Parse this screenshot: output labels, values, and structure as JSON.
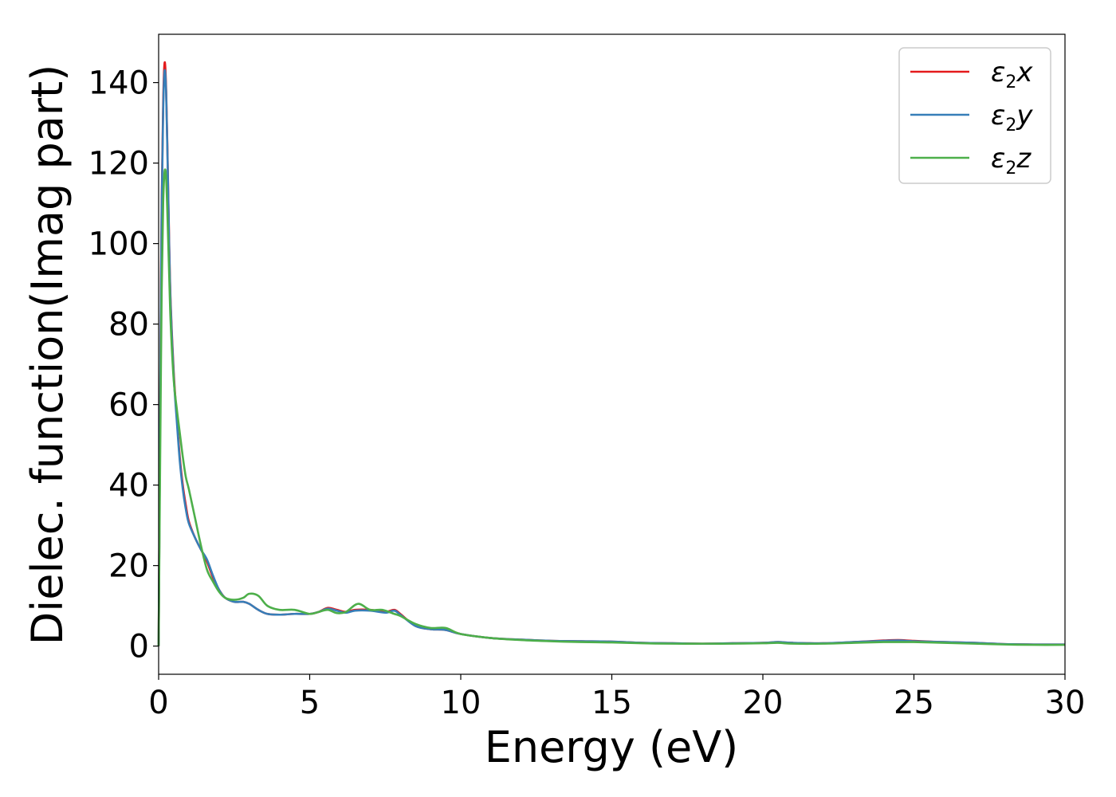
{
  "chart_data": {
    "type": "line",
    "title": "",
    "xlabel": "Energy (eV)",
    "ylabel": "Dielec. function(Imag part)",
    "xlim": [
      0,
      30
    ],
    "ylim": [
      -7,
      152
    ],
    "xticks": [
      0,
      5,
      10,
      15,
      20,
      25,
      30
    ],
    "yticks": [
      0,
      20,
      40,
      60,
      80,
      100,
      120,
      140
    ],
    "grid": false,
    "legend_position": "top-right",
    "series": [
      {
        "name": "ε₂x",
        "legend": {
          "base": "ε",
          "sub": "2",
          "suffix": "x"
        },
        "color": "#e41a1c",
        "x": [
          0,
          0.03,
          0.06,
          0.1,
          0.15,
          0.2,
          0.25,
          0.3,
          0.35,
          0.4,
          0.5,
          0.6,
          0.7,
          0.8,
          0.9,
          1.0,
          1.2,
          1.4,
          1.6,
          1.8,
          2.0,
          2.2,
          2.5,
          2.8,
          3.0,
          3.3,
          3.6,
          4.0,
          4.5,
          5.0,
          5.3,
          5.6,
          5.9,
          6.2,
          6.5,
          7.0,
          7.5,
          7.8,
          8.0,
          8.5,
          9.0,
          9.5,
          10.0,
          11.0,
          12.0,
          13.0,
          14.0,
          15.0,
          16.0,
          17.0,
          18.0,
          19.0,
          20.0,
          20.5,
          21.0,
          22.0,
          23.0,
          24.0,
          24.5,
          25.0,
          26.0,
          27.0,
          28.0,
          29.0,
          30.0
        ],
        "y": [
          0,
          35,
          70,
          110,
          135,
          145,
          138,
          120,
          100,
          85,
          68,
          57,
          47,
          40,
          35,
          31,
          27,
          24,
          21,
          17,
          14,
          12,
          11,
          11,
          10.5,
          9,
          8,
          7.8,
          8,
          8,
          8.5,
          9.5,
          9,
          8.5,
          9,
          9,
          8.5,
          9,
          8,
          5,
          4.2,
          4,
          3,
          2,
          1.6,
          1.3,
          1.2,
          1.1,
          0.8,
          0.7,
          0.6,
          0.7,
          0.8,
          1,
          0.8,
          0.7,
          1,
          1.4,
          1.5,
          1.3,
          1,
          0.8,
          0.5,
          0.4,
          0.4
        ]
      },
      {
        "name": "ε₂y",
        "legend": {
          "base": "ε",
          "sub": "2",
          "suffix": "y"
        },
        "color": "#377eb8",
        "x": [
          0,
          0.03,
          0.06,
          0.1,
          0.15,
          0.2,
          0.25,
          0.3,
          0.35,
          0.4,
          0.5,
          0.6,
          0.7,
          0.8,
          0.9,
          1.0,
          1.2,
          1.4,
          1.6,
          1.8,
          2.0,
          2.2,
          2.5,
          2.8,
          3.0,
          3.3,
          3.6,
          4.0,
          4.5,
          5.0,
          5.3,
          5.6,
          5.9,
          6.2,
          6.5,
          7.0,
          7.5,
          7.8,
          8.0,
          8.5,
          9.0,
          9.5,
          10.0,
          11.0,
          12.0,
          13.0,
          14.0,
          15.0,
          16.0,
          17.0,
          18.0,
          19.0,
          20.0,
          20.5,
          21.0,
          22.0,
          23.0,
          24.0,
          24.5,
          25.0,
          26.0,
          27.0,
          28.0,
          29.0,
          30.0
        ],
        "y": [
          0,
          34,
          68,
          108,
          133,
          143,
          137,
          119,
          99,
          84,
          67,
          56,
          46,
          39,
          34,
          30.5,
          27,
          24,
          21.5,
          17.5,
          14,
          12,
          11,
          11,
          10.5,
          9,
          8,
          7.8,
          8,
          8,
          8.5,
          9.3,
          8.8,
          8.3,
          8.8,
          8.8,
          8.3,
          8.8,
          7.8,
          5,
          4.2,
          4,
          3,
          2,
          1.6,
          1.3,
          1.2,
          1.1,
          0.8,
          0.7,
          0.6,
          0.7,
          0.8,
          1,
          0.8,
          0.7,
          1,
          1.3,
          1.4,
          1.2,
          1,
          0.8,
          0.5,
          0.4,
          0.4
        ]
      },
      {
        "name": "ε₂z",
        "legend": {
          "base": "ε",
          "sub": "2",
          "suffix": "z"
        },
        "color": "#4daf4a",
        "x": [
          0,
          0.03,
          0.06,
          0.1,
          0.15,
          0.2,
          0.25,
          0.3,
          0.35,
          0.4,
          0.5,
          0.6,
          0.7,
          0.8,
          0.9,
          1.0,
          1.2,
          1.4,
          1.6,
          1.8,
          2.0,
          2.2,
          2.5,
          2.8,
          3.0,
          3.3,
          3.6,
          4.0,
          4.5,
          5.0,
          5.3,
          5.6,
          5.9,
          6.2,
          6.6,
          7.0,
          7.4,
          7.8,
          8.0,
          8.5,
          9.0,
          9.5,
          10.0,
          11.0,
          12.0,
          13.0,
          14.0,
          15.0,
          16.0,
          17.0,
          18.0,
          19.0,
          20.0,
          20.5,
          21.0,
          22.0,
          23.0,
          24.0,
          24.5,
          25.0,
          26.0,
          27.0,
          28.0,
          29.0,
          30.0
        ],
        "y": [
          0,
          28,
          55,
          88,
          110,
          118,
          116,
          105,
          92,
          80,
          66,
          59,
          53,
          47,
          42,
          39,
          32,
          25,
          19,
          16,
          13.5,
          12,
          11.5,
          12,
          13,
          12.5,
          10,
          9,
          9,
          8,
          8.5,
          9,
          8.2,
          8.5,
          10.5,
          9,
          9,
          8,
          7.5,
          5.5,
          4.5,
          4.5,
          3,
          2,
          1.5,
          1.2,
          1,
          0.9,
          0.7,
          0.6,
          0.6,
          0.6,
          0.7,
          0.8,
          0.6,
          0.6,
          0.8,
          1,
          1,
          1,
          0.8,
          0.6,
          0.4,
          0.3,
          0.3
        ]
      }
    ]
  }
}
